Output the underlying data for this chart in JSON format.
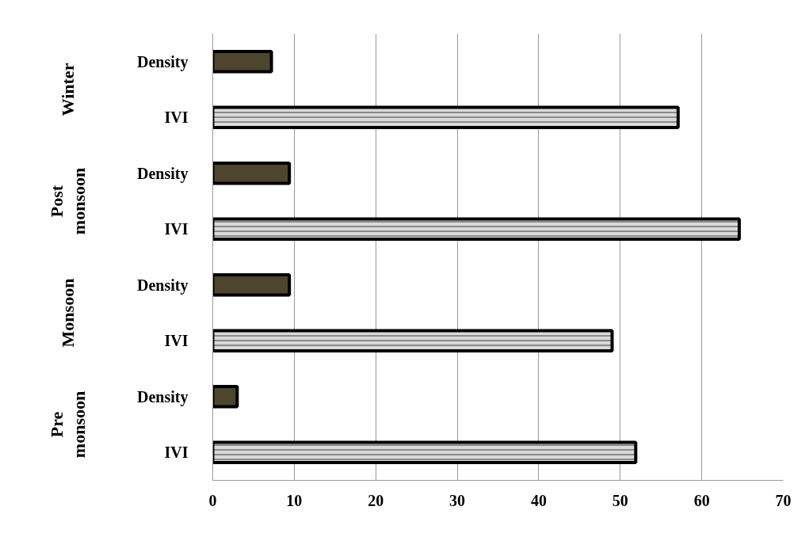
{
  "chart_data": {
    "type": "bar",
    "orientation": "horizontal",
    "categories": [
      "Density",
      "IVI",
      "Density",
      "IVI",
      "Density",
      "IVI",
      "Density",
      "IVI"
    ],
    "values": [
      7.2,
      57.1,
      9.4,
      64.6,
      9.4,
      49.0,
      3.0,
      51.9
    ],
    "colors": [
      "#4d452e",
      "#d9d9d9",
      "#4d452e",
      "#d9d9d9",
      "#4d452e",
      "#d9d9d9",
      "#4d452e",
      "#d9d9d9"
    ],
    "annotations": [
      "Winter",
      "Post monsoon",
      "Monsoon",
      "Pre monsoon"
    ],
    "xlim": [
      0,
      70
    ],
    "xticks": [
      0,
      10,
      20,
      30,
      40,
      50,
      60,
      70
    ],
    "grid": "x"
  }
}
